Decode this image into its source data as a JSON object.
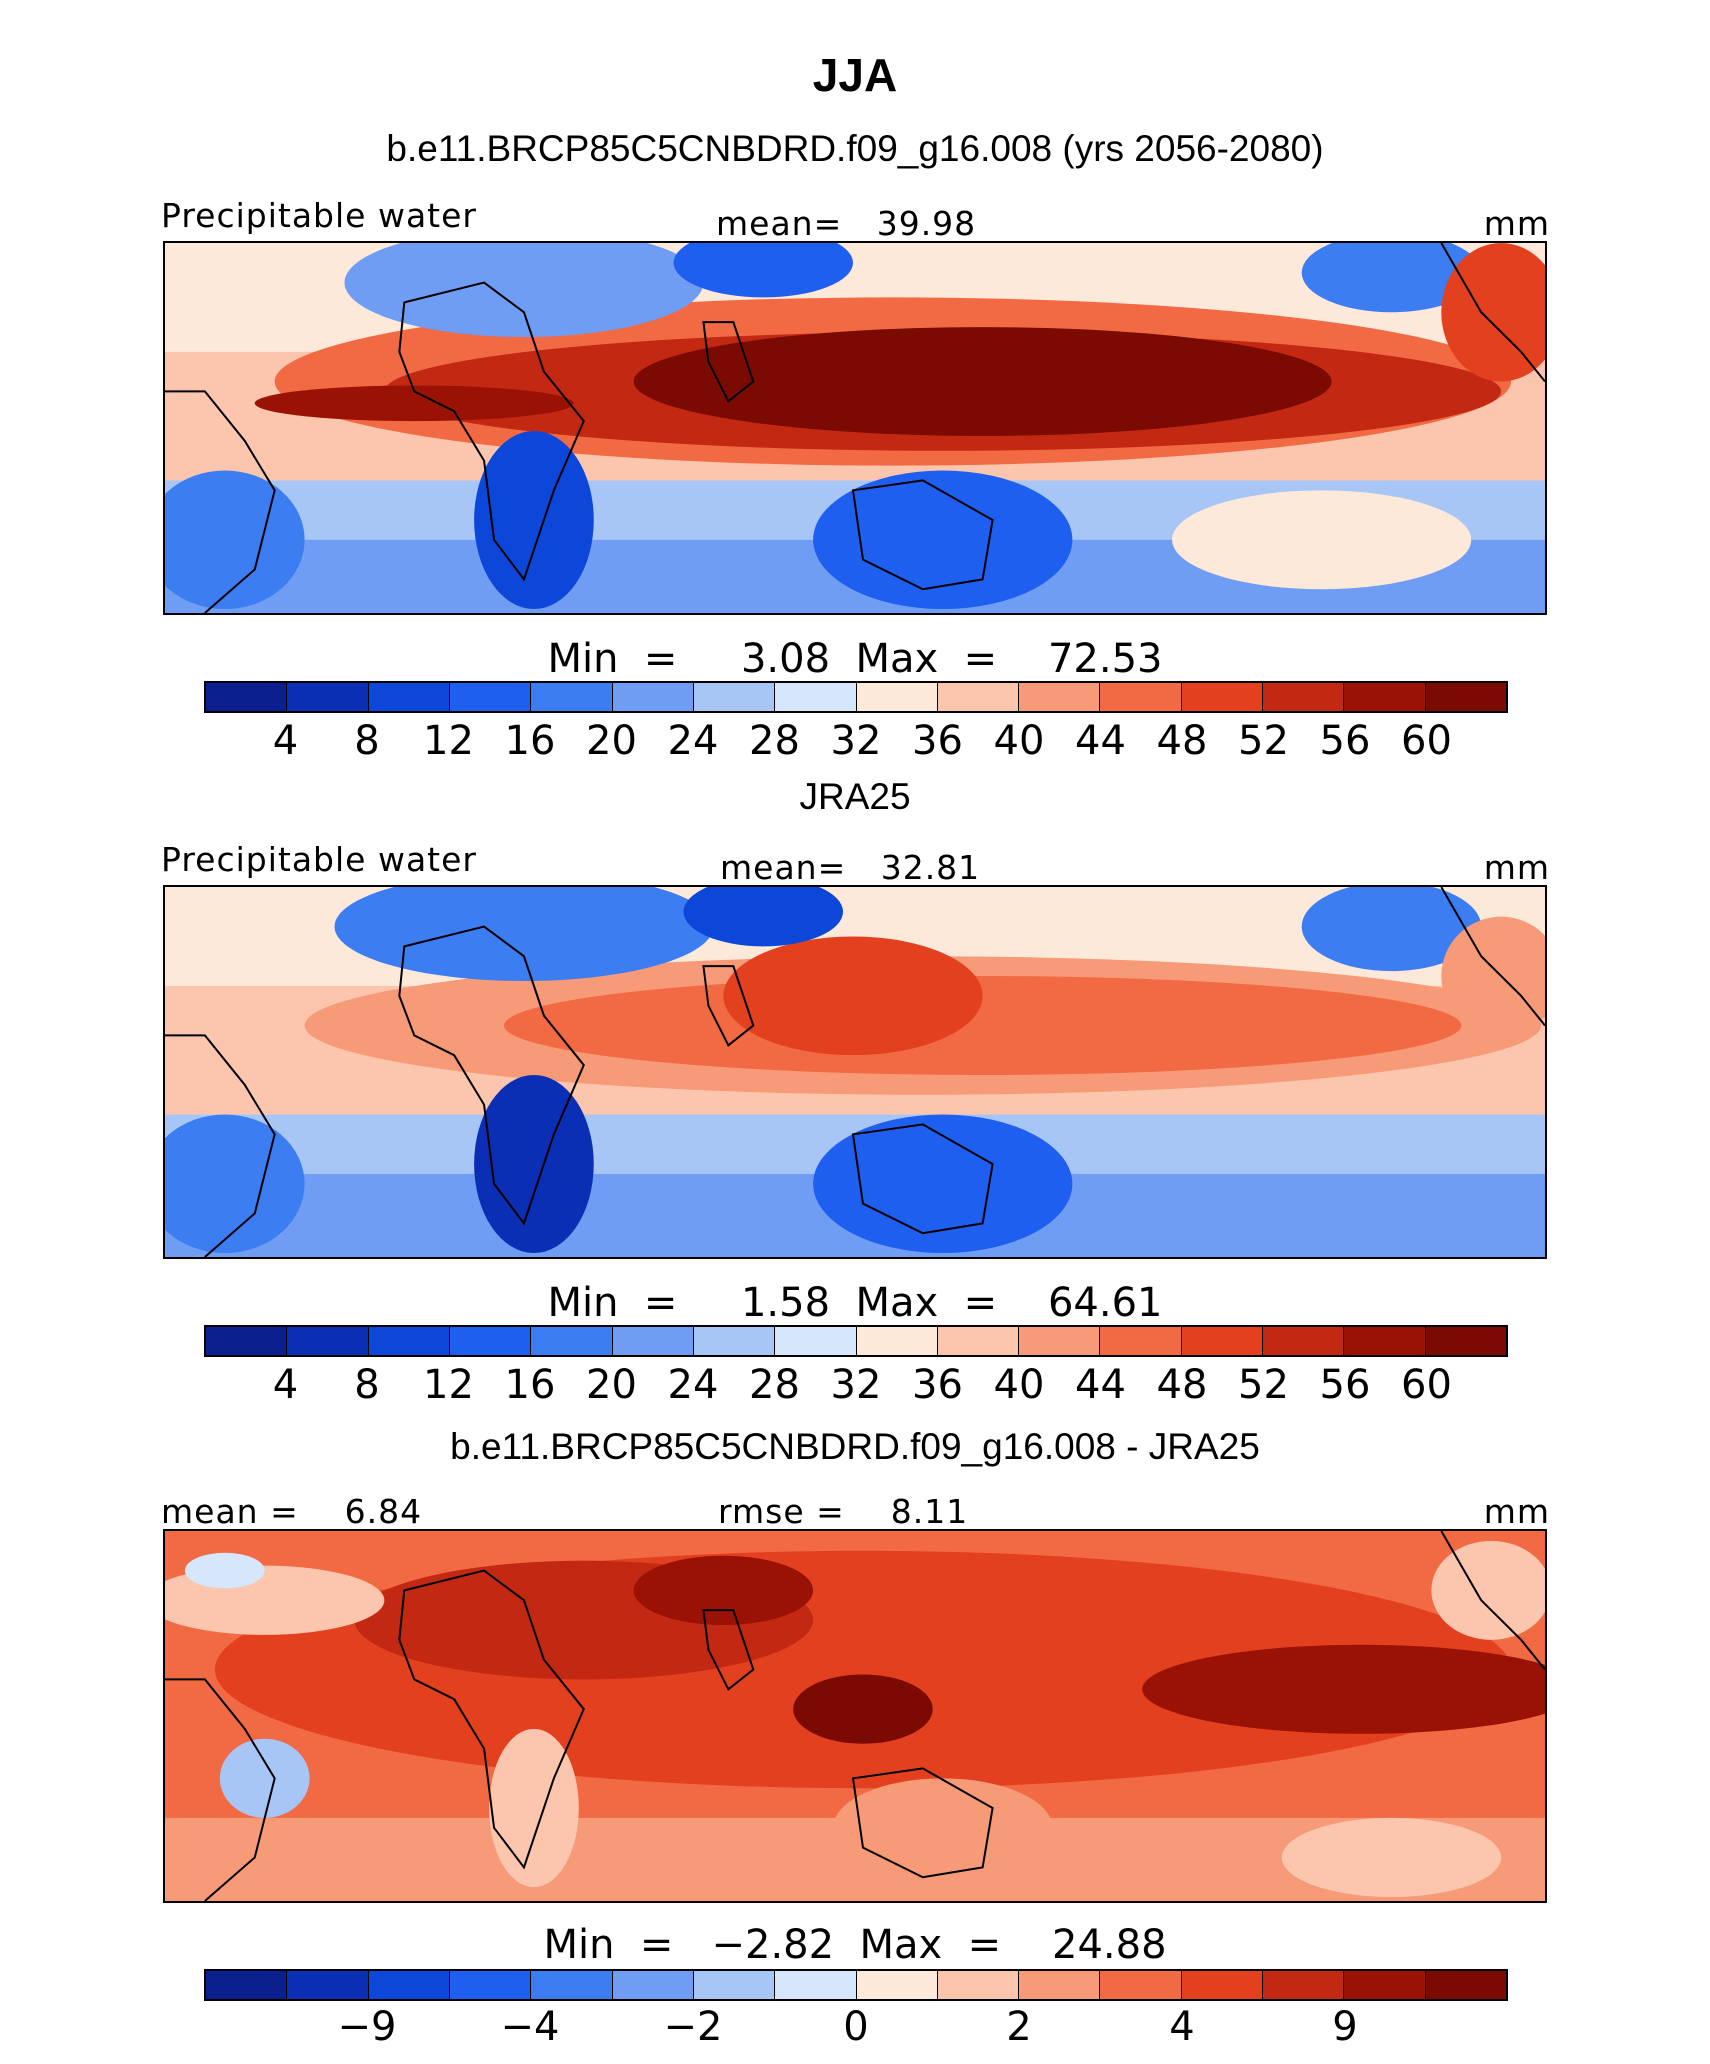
{
  "figure": {
    "title": "JJA"
  },
  "colors": [
    "#0b1f8e",
    "#0a2fb5",
    "#0d47d9",
    "#1f5ff0",
    "#3d7df2",
    "#6f9df3",
    "#a8c6f5",
    "#d6e6fb",
    "#fde9da",
    "#fbc6ad",
    "#f79a78",
    "#f26a43",
    "#e3401f",
    "#c22812",
    "#9a1205",
    "#7a0a02"
  ],
  "chart_data": [
    {
      "type": "heatmap",
      "panel": "top",
      "subtitle": "b.e11.BRCP85C5CNBDRD.f09_g16.008 (yrs 2056-2080)",
      "left_label": "Precipitable water",
      "center_label": "mean=   39.98",
      "right_label": "mm",
      "min_text": "Min  =     3.08",
      "max_text": "Max  =    72.53",
      "min": 3.08,
      "max": 72.53,
      "mean": 39.98,
      "units": "mm",
      "colorbar_ticks": [
        "4",
        "8",
        "12",
        "16",
        "20",
        "24",
        "28",
        "32",
        "36",
        "40",
        "44",
        "48",
        "52",
        "56",
        "60"
      ]
    },
    {
      "type": "heatmap",
      "panel": "middle",
      "subtitle": "JRA25",
      "left_label": "Precipitable water",
      "center_label": "mean=   32.81",
      "right_label": "mm",
      "min_text": "Min  =     1.58",
      "max_text": "Max  =    64.61",
      "min": 1.58,
      "max": 64.61,
      "mean": 32.81,
      "units": "mm",
      "colorbar_ticks": [
        "4",
        "8",
        "12",
        "16",
        "20",
        "24",
        "28",
        "32",
        "36",
        "40",
        "44",
        "48",
        "52",
        "56",
        "60"
      ]
    },
    {
      "type": "heatmap",
      "panel": "bottom",
      "subtitle": "b.e11.BRCP85C5CNBDRD.f09_g16.008 - JRA25",
      "left_label": "mean =    6.84",
      "center_label": "rmse =    8.11",
      "right_label": "mm",
      "min_text": "Min  =   −2.82",
      "max_text": "Max  =    24.88",
      "min": -2.82,
      "max": 24.88,
      "mean": 6.84,
      "rmse": 8.11,
      "units": "mm",
      "colorbar_ticks": [
        "",
        "−9",
        "",
        "−4",
        "",
        "−2",
        "",
        "0",
        "",
        "2",
        "",
        "4",
        "",
        "9",
        ""
      ]
    }
  ]
}
